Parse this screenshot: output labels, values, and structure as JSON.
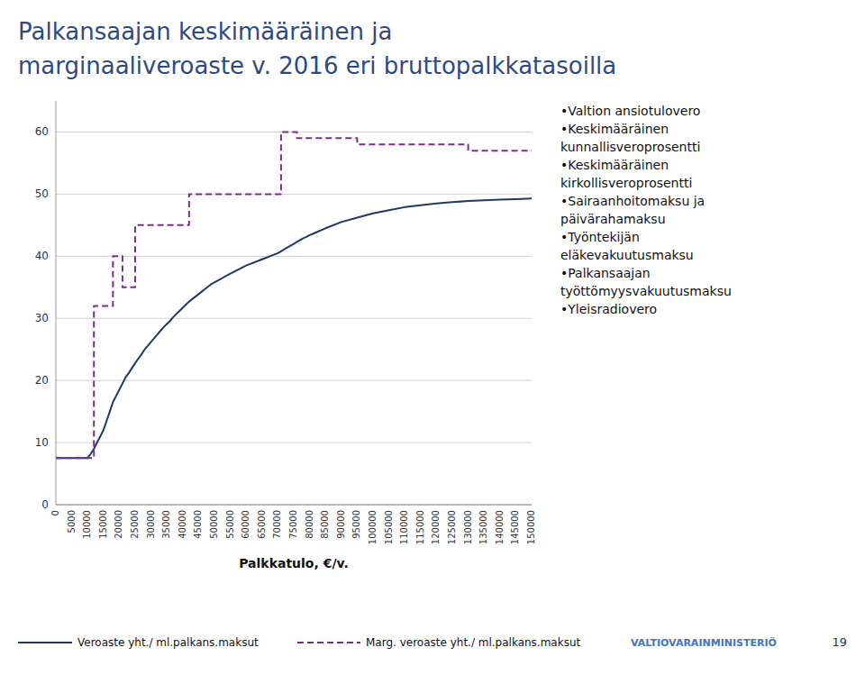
{
  "chart_data": {
    "type": "line",
    "title": "Palkansaajan keskimääräinen ja",
    "subtitle": "marginaaliveroaste v. 2016 eri bruttopalkkatasoilla",
    "x_label": "Palkkatulo, €/v.",
    "annotations": [
      "•Valtion ansiotulovero\n•Keskimääräinen\nkunnallisveroprosentti\n•Keskimääräinen\nkirkollisveroprosentti\n•Sairaanhoitomaksu ja\npäivärahamaksu\n•Työntekijän\neläkevakuutusmaksu\n•Palkansaajan\ntyöttömyysvakuutusmaksu\n•Yleisradiovero",
      "VALTIOVARAINMINISTERIÖ",
      "19"
    ],
    "x": [
      0,
      5000,
      10000,
      11000,
      12000,
      13000,
      14000,
      15000,
      16000,
      17000,
      18000,
      19000,
      20000,
      21000,
      22000,
      23000,
      24000,
      25000,
      26000,
      27000,
      28000,
      29000,
      30000,
      31000,
      32000,
      33000,
      34000,
      35000,
      36000,
      37000,
      38000,
      39000,
      40000,
      41000,
      42000,
      43000,
      44000,
      45000,
      46000,
      47000,
      48000,
      49000,
      50000,
      55000,
      60000,
      65000,
      70000,
      71000,
      72000,
      73000,
      74000,
      75000,
      76000,
      77000,
      78000,
      79000,
      80000,
      81000,
      85000,
      90000,
      95000,
      100000,
      105000,
      110000,
      115000,
      120000,
      125000,
      130000,
      135000,
      140000,
      145000,
      150000
    ],
    "series": [
      {
        "name": "Veroaste yht./ ml.palkans.maksut",
        "type": "line",
        "line_style": "solid",
        "color": "#1f3864",
        "values": [
          7.5,
          7.5,
          7.5,
          8.2,
          9.0,
          10.0,
          11.0,
          12.0,
          13.5,
          15.0,
          16.5,
          17.5,
          18.5,
          19.5,
          20.5,
          21.2,
          22.0,
          22.8,
          23.5,
          24.2,
          25.0,
          25.6,
          26.2,
          26.8,
          27.4,
          28.0,
          28.6,
          29.1,
          29.6,
          30.2,
          30.7,
          31.2,
          31.7,
          32.2,
          32.7,
          33.1,
          33.5,
          33.9,
          34.3,
          34.7,
          35.1,
          35.5,
          35.8,
          37.2,
          38.5,
          39.5,
          40.5,
          40.8,
          41.1,
          41.4,
          41.7,
          42.0,
          42.3,
          42.6,
          42.9,
          43.1,
          43.4,
          43.6,
          44.5,
          45.5,
          46.2,
          46.9,
          47.4,
          47.9,
          48.2,
          48.5,
          48.7,
          48.9,
          49.0,
          49.1,
          49.2,
          49.3
        ]
      },
      {
        "name": "Marg. veroaste yht./ ml.palkans.maksut",
        "type": "step",
        "line_style": "dashed",
        "color": "#7b2c8c",
        "values": [
          7.5,
          7.5,
          7.5,
          7.5,
          32,
          32,
          32,
          32,
          32,
          32,
          40,
          40,
          40,
          35,
          35,
          35,
          35,
          45,
          45,
          45,
          45,
          45,
          45,
          45,
          45,
          45,
          45,
          45,
          45,
          45,
          45,
          45,
          45,
          45,
          50,
          50,
          50,
          50,
          50,
          50,
          50,
          50,
          50,
          50,
          50,
          50,
          50,
          60,
          60,
          60,
          60,
          60,
          59,
          59,
          59,
          59,
          59,
          59,
          59,
          59,
          58,
          58,
          58,
          58,
          58,
          58,
          58,
          57,
          57,
          57,
          57,
          57
        ]
      }
    ],
    "xlim": [
      0,
      150000
    ],
    "xticks": [
      0,
      5000,
      10000,
      15000,
      20000,
      25000,
      30000,
      35000,
      40000,
      45000,
      50000,
      55000,
      60000,
      65000,
      70000,
      75000,
      80000,
      85000,
      90000,
      95000,
      100000,
      105000,
      110000,
      115000,
      120000,
      125000,
      130000,
      135000,
      140000,
      145000,
      150000
    ],
    "ylim": [
      0,
      65
    ],
    "yticks": [
      0,
      10,
      20,
      30,
      40,
      50,
      60
    ],
    "grid": true,
    "legend": "bottom"
  }
}
